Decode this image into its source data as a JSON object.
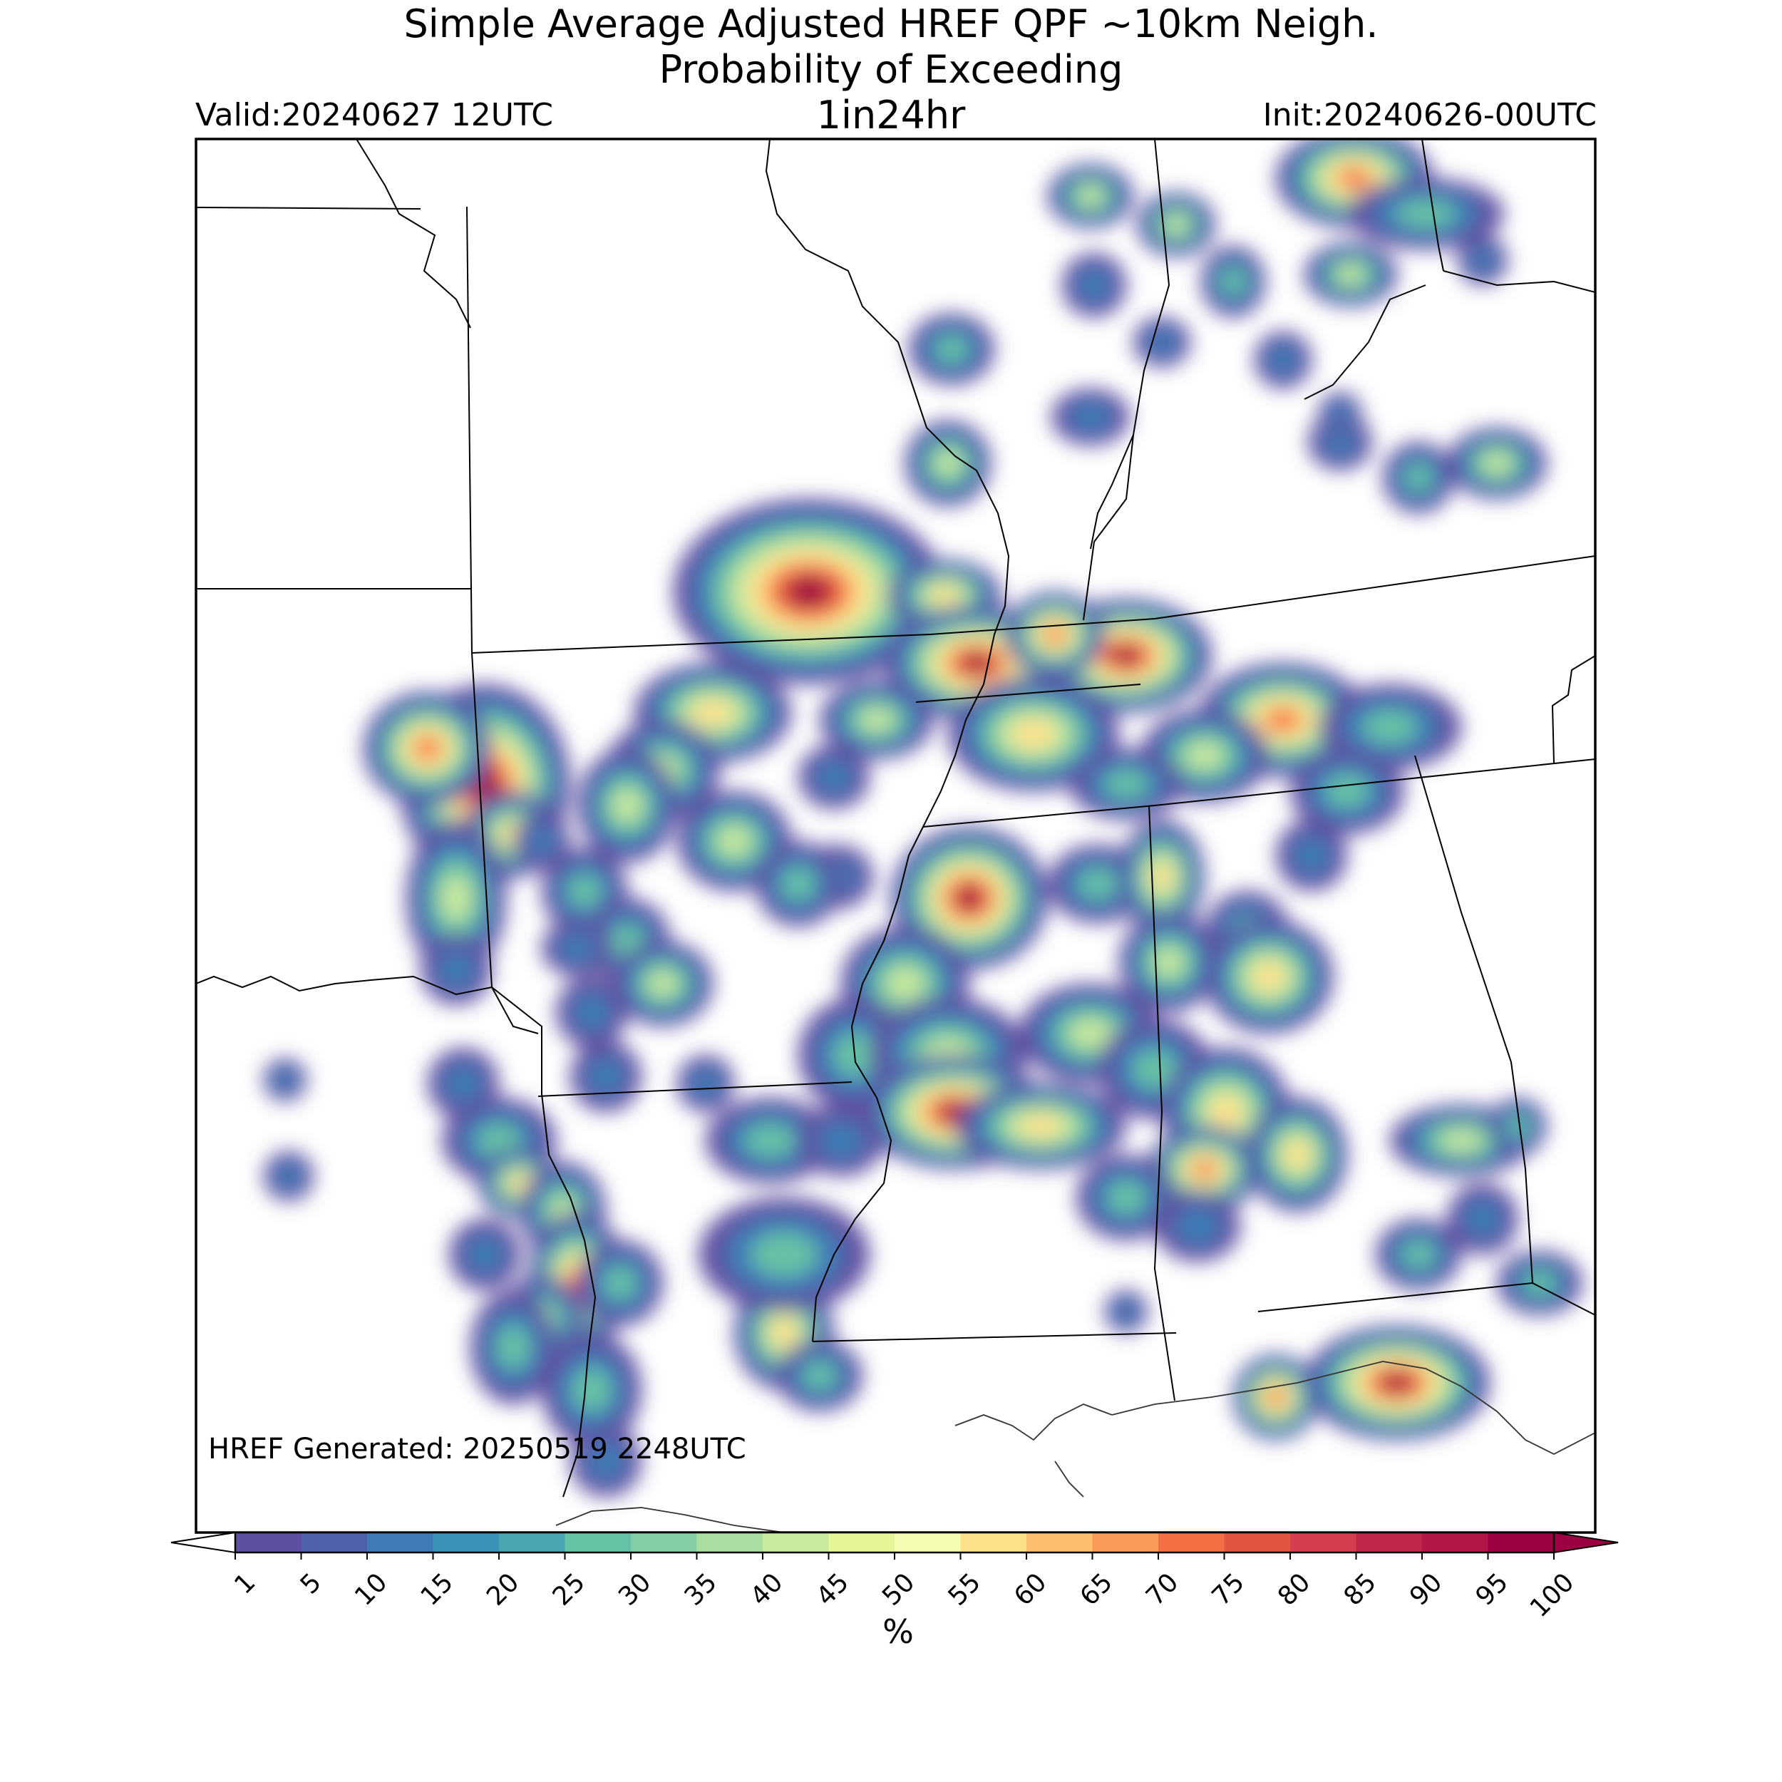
{
  "title": {
    "line1": "Simple Average Adjusted HREF QPF ~10km Neigh.",
    "line2": "Probability of Exceeding",
    "line3": "1in24hr"
  },
  "valid_label": "Valid:20240627 12UTC",
  "init_label": "Init:20240626-00UTC",
  "generated_label": "HREF Generated: 20250519 2248UTC",
  "colorbar": {
    "label": "%",
    "ticks": [
      "1",
      "5",
      "10",
      "15",
      "20",
      "25",
      "30",
      "35",
      "40",
      "45",
      "50",
      "55",
      "60",
      "65",
      "70",
      "75",
      "80",
      "85",
      "90",
      "95",
      "100"
    ],
    "colors": [
      "#5e4fa2",
      "#4f61aa",
      "#3e7bb7",
      "#3b92b8",
      "#4ba4b1",
      "#66c2a5",
      "#86cfa5",
      "#a9dda2",
      "#c9e99f",
      "#e6f598",
      "#f5fbb1",
      "#fee08b",
      "#fdbf6f",
      "#fc9a59",
      "#f46d43",
      "#e3553e",
      "#d53e4f",
      "#c1274a",
      "#b11646",
      "#9e0142"
    ]
  },
  "map_layers": [
    "state-borders",
    "coastline",
    "probability-field"
  ]
}
